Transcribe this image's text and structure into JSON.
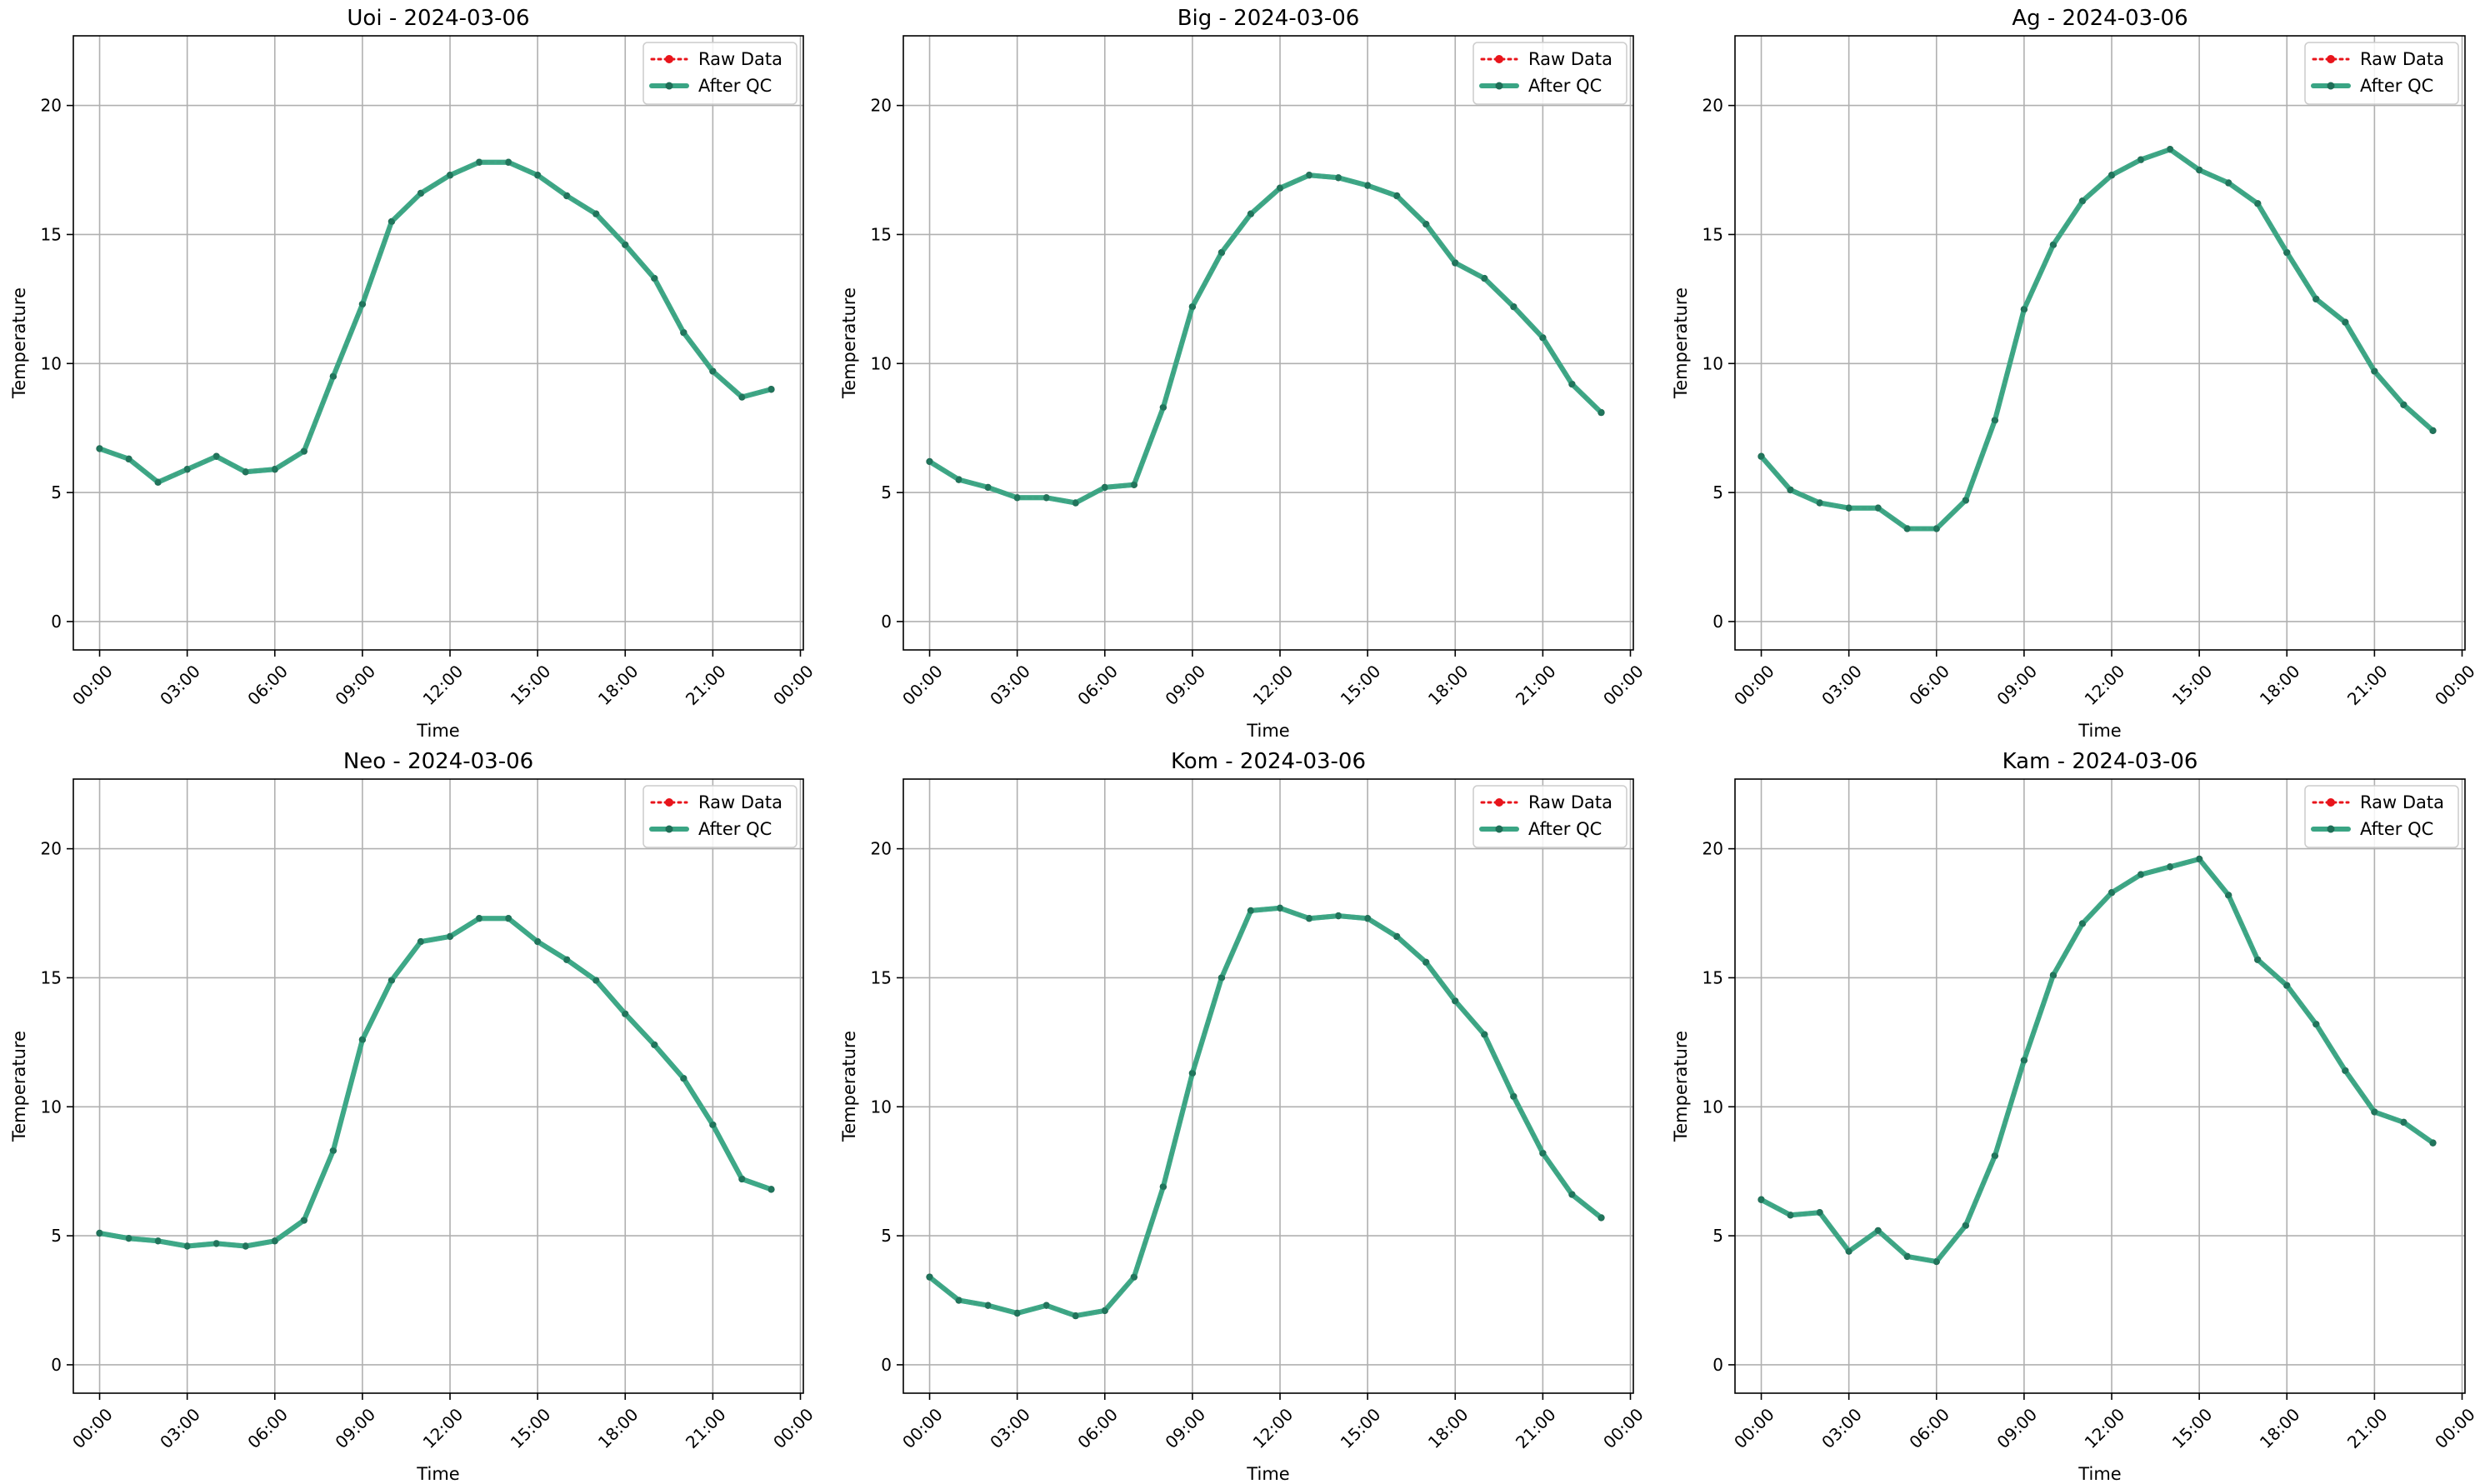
{
  "colors": {
    "raw": "#e8141b",
    "qc": "#3aa584",
    "qc_marker": "#1f6e57",
    "grid": "#b0b0b0",
    "axes": "#000000"
  },
  "chart_data": [
    {
      "type": "line",
      "title": "Uoi - 2024-03-06",
      "xlabel": "Time",
      "ylabel": "Temperature",
      "ylim": [
        -1.1,
        22.7
      ],
      "xlim": [
        -0.9,
        24.1
      ],
      "x_ticks": [
        0,
        3,
        6,
        9,
        12,
        15,
        18,
        21,
        24
      ],
      "x_tick_labels": [
        "00:00",
        "03:00",
        "06:00",
        "09:00",
        "12:00",
        "15:00",
        "18:00",
        "21:00",
        "00:00"
      ],
      "y_ticks": [
        0,
        5,
        10,
        15,
        20
      ],
      "y_tick_labels": [
        "0",
        "5",
        "10",
        "15",
        "20"
      ],
      "grid": true,
      "legend": "top-right",
      "series": [
        {
          "name": "Raw Data",
          "style": "dotted",
          "x": [
            0,
            1,
            2,
            3,
            4,
            5,
            6,
            7,
            8,
            9,
            10,
            11,
            12,
            13,
            14,
            15,
            16,
            17,
            18,
            19,
            20,
            21,
            22,
            23
          ],
          "values": [
            6.7,
            6.3,
            5.4,
            5.9,
            6.4,
            5.8,
            5.9,
            6.6,
            9.5,
            12.3,
            15.5,
            16.6,
            17.3,
            17.8,
            17.8,
            17.3,
            16.5,
            15.8,
            14.6,
            13.3,
            11.2,
            9.7,
            8.7,
            9.0
          ]
        },
        {
          "name": "After QC",
          "style": "solid",
          "x": [
            0,
            1,
            2,
            3,
            4,
            5,
            6,
            7,
            8,
            9,
            10,
            11,
            12,
            13,
            14,
            15,
            16,
            17,
            18,
            19,
            20,
            21,
            22,
            23
          ],
          "values": [
            6.7,
            6.3,
            5.4,
            5.9,
            6.4,
            5.8,
            5.9,
            6.6,
            9.5,
            12.3,
            15.5,
            16.6,
            17.3,
            17.8,
            17.8,
            17.3,
            16.5,
            15.8,
            14.6,
            13.3,
            11.2,
            9.7,
            8.7,
            9.0
          ]
        }
      ]
    },
    {
      "type": "line",
      "title": "Big - 2024-03-06",
      "xlabel": "Time",
      "ylabel": "Temperature",
      "ylim": [
        -1.1,
        22.7
      ],
      "xlim": [
        -0.9,
        24.1
      ],
      "x_ticks": [
        0,
        3,
        6,
        9,
        12,
        15,
        18,
        21,
        24
      ],
      "x_tick_labels": [
        "00:00",
        "03:00",
        "06:00",
        "09:00",
        "12:00",
        "15:00",
        "18:00",
        "21:00",
        "00:00"
      ],
      "y_ticks": [
        0,
        5,
        10,
        15,
        20
      ],
      "y_tick_labels": [
        "0",
        "5",
        "10",
        "15",
        "20"
      ],
      "grid": true,
      "legend": "top-right",
      "series": [
        {
          "name": "Raw Data",
          "style": "dotted",
          "x": [
            0,
            1,
            2,
            3,
            4,
            5,
            6,
            7,
            8,
            9,
            10,
            11,
            12,
            13,
            14,
            15,
            16,
            17,
            18,
            19,
            20,
            21,
            22,
            23
          ],
          "values": [
            6.2,
            5.5,
            5.2,
            4.8,
            4.8,
            4.6,
            5.2,
            5.3,
            8.3,
            12.2,
            14.3,
            15.8,
            16.8,
            17.3,
            17.2,
            16.9,
            16.5,
            15.4,
            13.9,
            13.3,
            12.2,
            11.0,
            9.2,
            8.1
          ]
        },
        {
          "name": "After QC",
          "style": "solid",
          "x": [
            0,
            1,
            2,
            3,
            4,
            5,
            6,
            7,
            8,
            9,
            10,
            11,
            12,
            13,
            14,
            15,
            16,
            17,
            18,
            19,
            20,
            21,
            22,
            23
          ],
          "values": [
            6.2,
            5.5,
            5.2,
            4.8,
            4.8,
            4.6,
            5.2,
            5.3,
            8.3,
            12.2,
            14.3,
            15.8,
            16.8,
            17.3,
            17.2,
            16.9,
            16.5,
            15.4,
            13.9,
            13.3,
            12.2,
            11.0,
            9.2,
            8.1
          ]
        }
      ]
    },
    {
      "type": "line",
      "title": "Ag - 2024-03-06",
      "xlabel": "Time",
      "ylabel": "Temperature",
      "ylim": [
        -1.1,
        22.7
      ],
      "xlim": [
        -0.9,
        24.1
      ],
      "x_ticks": [
        0,
        3,
        6,
        9,
        12,
        15,
        18,
        21,
        24
      ],
      "x_tick_labels": [
        "00:00",
        "03:00",
        "06:00",
        "09:00",
        "12:00",
        "15:00",
        "18:00",
        "21:00",
        "00:00"
      ],
      "y_ticks": [
        0,
        5,
        10,
        15,
        20
      ],
      "y_tick_labels": [
        "0",
        "5",
        "10",
        "15",
        "20"
      ],
      "grid": true,
      "legend": "top-right",
      "series": [
        {
          "name": "Raw Data",
          "style": "dotted",
          "x": [
            0,
            1,
            2,
            3,
            4,
            5,
            6,
            7,
            8,
            9,
            10,
            11,
            12,
            13,
            14,
            15,
            16,
            17,
            18,
            19,
            20,
            21,
            22,
            23
          ],
          "values": [
            6.4,
            5.1,
            4.6,
            4.4,
            4.4,
            3.6,
            3.6,
            4.7,
            7.8,
            12.1,
            14.6,
            16.3,
            17.3,
            17.9,
            18.3,
            17.5,
            17.0,
            16.2,
            14.3,
            12.5,
            11.6,
            9.7,
            8.4,
            7.4
          ]
        },
        {
          "name": "After QC",
          "style": "solid",
          "x": [
            0,
            1,
            2,
            3,
            4,
            5,
            6,
            7,
            8,
            9,
            10,
            11,
            12,
            13,
            14,
            15,
            16,
            17,
            18,
            19,
            20,
            21,
            22,
            23
          ],
          "values": [
            6.4,
            5.1,
            4.6,
            4.4,
            4.4,
            3.6,
            3.6,
            4.7,
            7.8,
            12.1,
            14.6,
            16.3,
            17.3,
            17.9,
            18.3,
            17.5,
            17.0,
            16.2,
            14.3,
            12.5,
            11.6,
            9.7,
            8.4,
            7.4
          ]
        }
      ]
    },
    {
      "type": "line",
      "title": "Neo - 2024-03-06",
      "xlabel": "Time",
      "ylabel": "Temperature",
      "ylim": [
        -1.1,
        22.7
      ],
      "xlim": [
        -0.9,
        24.1
      ],
      "x_ticks": [
        0,
        3,
        6,
        9,
        12,
        15,
        18,
        21,
        24
      ],
      "x_tick_labels": [
        "00:00",
        "03:00",
        "06:00",
        "09:00",
        "12:00",
        "15:00",
        "18:00",
        "21:00",
        "00:00"
      ],
      "y_ticks": [
        0,
        5,
        10,
        15,
        20
      ],
      "y_tick_labels": [
        "0",
        "5",
        "10",
        "15",
        "20"
      ],
      "grid": true,
      "legend": "top-right",
      "series": [
        {
          "name": "Raw Data",
          "style": "dotted",
          "x": [],
          "values": []
        },
        {
          "name": "After QC",
          "style": "solid",
          "x": [
            0,
            1,
            2,
            3,
            4,
            5,
            6,
            7,
            8,
            9,
            10,
            11,
            12,
            13,
            14,
            15,
            16,
            17,
            18,
            19,
            20,
            21,
            22,
            23
          ],
          "values": [
            5.1,
            4.9,
            4.8,
            4.6,
            4.7,
            4.6,
            4.8,
            5.6,
            8.3,
            12.6,
            14.9,
            16.4,
            16.6,
            17.3,
            17.3,
            16.4,
            15.7,
            14.9,
            13.6,
            12.4,
            11.1,
            9.3,
            7.2,
            6.8
          ]
        }
      ]
    },
    {
      "type": "line",
      "title": "Kom - 2024-03-06",
      "xlabel": "Time",
      "ylabel": "Temperature",
      "ylim": [
        -1.1,
        22.7
      ],
      "xlim": [
        -0.9,
        24.1
      ],
      "x_ticks": [
        0,
        3,
        6,
        9,
        12,
        15,
        18,
        21,
        24
      ],
      "x_tick_labels": [
        "00:00",
        "03:00",
        "06:00",
        "09:00",
        "12:00",
        "15:00",
        "18:00",
        "21:00",
        "00:00"
      ],
      "y_ticks": [
        0,
        5,
        10,
        15,
        20
      ],
      "y_tick_labels": [
        "0",
        "5",
        "10",
        "15",
        "20"
      ],
      "grid": true,
      "legend": "top-right",
      "series": [
        {
          "name": "Raw Data",
          "style": "dotted",
          "x": [
            0,
            1,
            2,
            3,
            4,
            5,
            6,
            7,
            8,
            9,
            10,
            11,
            12,
            13,
            14,
            15,
            16,
            17,
            18,
            19,
            20,
            21,
            22,
            23
          ],
          "values": [
            3.4,
            2.5,
            2.3,
            2.0,
            2.3,
            1.9,
            2.1,
            3.4,
            6.9,
            11.3,
            15.0,
            17.6,
            17.7,
            17.3,
            17.4,
            17.3,
            16.6,
            15.6,
            14.1,
            12.8,
            10.4,
            8.2,
            6.6,
            5.7
          ]
        },
        {
          "name": "After QC",
          "style": "solid",
          "x": [
            0,
            1,
            2,
            3,
            4,
            5,
            6,
            7,
            8,
            9,
            10,
            11,
            12,
            13,
            14,
            15,
            16,
            17,
            18,
            19,
            20,
            21,
            22,
            23
          ],
          "values": [
            3.4,
            2.5,
            2.3,
            2.0,
            2.3,
            1.9,
            2.1,
            3.4,
            6.9,
            11.3,
            15.0,
            17.6,
            17.7,
            17.3,
            17.4,
            17.3,
            16.6,
            15.6,
            14.1,
            12.8,
            10.4,
            8.2,
            6.6,
            5.7
          ]
        }
      ]
    },
    {
      "type": "line",
      "title": "Kam - 2024-03-06",
      "xlabel": "Time",
      "ylabel": "Temperature",
      "ylim": [
        -1.1,
        22.7
      ],
      "xlim": [
        -0.9,
        24.1
      ],
      "x_ticks": [
        0,
        3,
        6,
        9,
        12,
        15,
        18,
        21,
        24
      ],
      "x_tick_labels": [
        "00:00",
        "03:00",
        "06:00",
        "09:00",
        "12:00",
        "15:00",
        "18:00",
        "21:00",
        "00:00"
      ],
      "y_ticks": [
        0,
        5,
        10,
        15,
        20
      ],
      "y_tick_labels": [
        "0",
        "5",
        "10",
        "15",
        "20"
      ],
      "grid": true,
      "legend": "top-right",
      "series": [
        {
          "name": "Raw Data",
          "style": "dotted",
          "x": [
            0,
            1,
            2,
            3,
            4,
            5,
            6,
            7,
            8,
            9,
            10,
            11,
            12,
            13,
            14,
            15,
            16,
            17,
            18,
            19,
            20,
            21,
            22,
            23
          ],
          "values": [
            6.4,
            5.8,
            5.9,
            4.4,
            5.2,
            4.2,
            4.0,
            5.4,
            8.1,
            11.8,
            15.1,
            17.1,
            18.3,
            19.0,
            19.3,
            19.6,
            18.2,
            15.7,
            14.7,
            13.2,
            11.4,
            9.8,
            9.4,
            8.6
          ]
        },
        {
          "name": "After QC",
          "style": "solid",
          "x": [
            0,
            1,
            2,
            3,
            4,
            5,
            6,
            7,
            8,
            9,
            10,
            11,
            12,
            13,
            14,
            15,
            16,
            17,
            18,
            19,
            20,
            21,
            22,
            23
          ],
          "values": [
            6.4,
            5.8,
            5.9,
            4.4,
            5.2,
            4.2,
            4.0,
            5.4,
            8.1,
            11.8,
            15.1,
            17.1,
            18.3,
            19.0,
            19.3,
            19.6,
            18.2,
            15.7,
            14.7,
            13.2,
            11.4,
            9.8,
            9.4,
            8.6
          ]
        }
      ]
    }
  ]
}
